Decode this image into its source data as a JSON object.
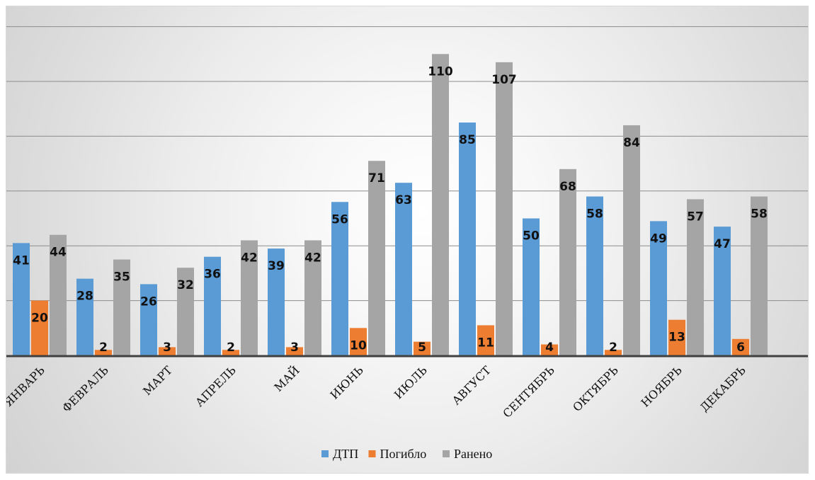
{
  "chart_data": {
    "type": "bar",
    "title": "",
    "xlabel": "",
    "ylabel": "",
    "ylim": [
      0,
      125
    ],
    "grid_step": 20,
    "grid": true,
    "legend_position": "bottom",
    "categories": [
      "ЯНВАРЬ",
      "ФЕВРАЛЬ",
      "МАРТ",
      "АПРЕЛЬ",
      "МАЙ",
      "ИЮНЬ",
      "ИЮЛЬ",
      "АВГУСТ",
      "СЕНТЯБРЬ",
      "ОКТЯБРЬ",
      "НОЯБРЬ",
      "ДЕКАБРЬ"
    ],
    "series": [
      {
        "name": "ДТП",
        "color": "#5b9bd5",
        "values": [
          41,
          28,
          26,
          36,
          39,
          56,
          63,
          85,
          50,
          58,
          49,
          47
        ]
      },
      {
        "name": "Погибло",
        "color": "#ed7d31",
        "values": [
          20,
          2,
          3,
          2,
          3,
          10,
          5,
          11,
          4,
          2,
          13,
          6
        ]
      },
      {
        "name": "Ранено",
        "color": "#a5a5a5",
        "values": [
          44,
          35,
          32,
          42,
          42,
          71,
          110,
          107,
          68,
          84,
          57,
          58
        ]
      }
    ]
  }
}
